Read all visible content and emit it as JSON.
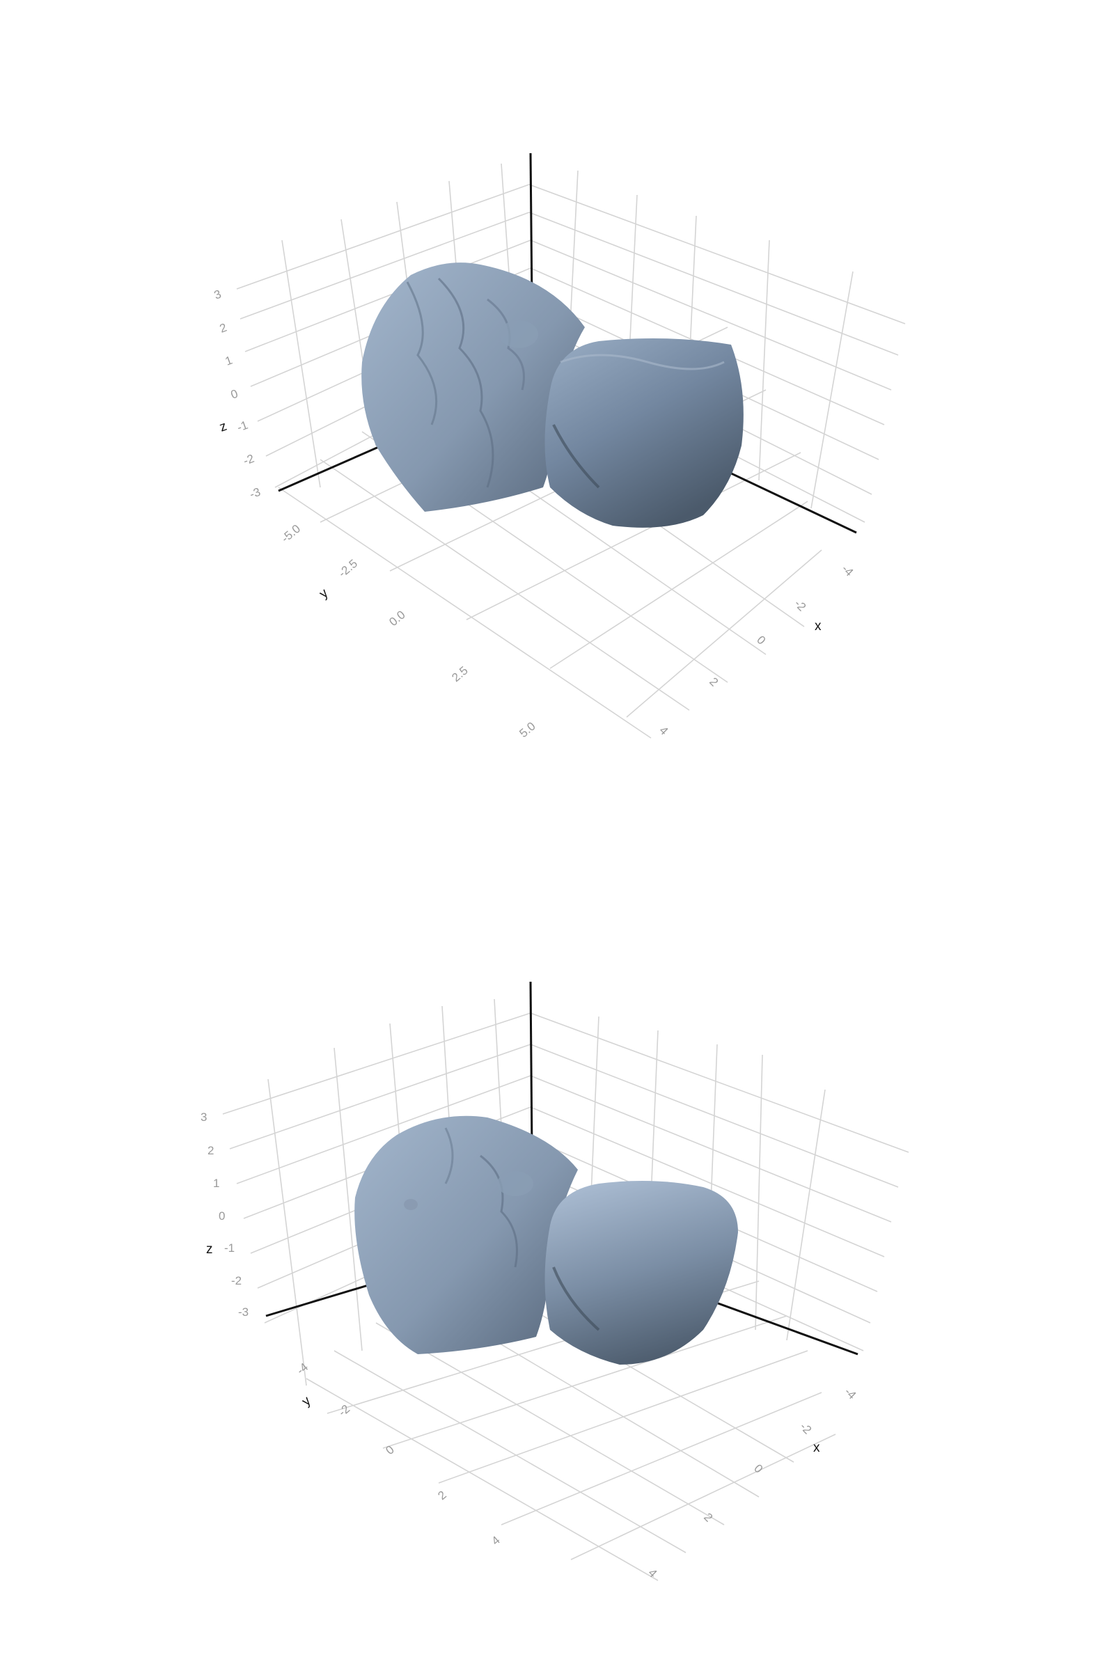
{
  "chart_data": [
    {
      "type": "surface",
      "colors": {
        "surface_light": "#9aaec5",
        "surface_mid": "#7b8ea5",
        "surface_dark": "#4b5a6b",
        "grid": "#d4d4d4",
        "axis": "#111111",
        "tick": "#9a9a9a"
      },
      "axes": {
        "x": {
          "label": "x",
          "ticks": [
            "-4",
            "-2",
            "0",
            "2",
            "4"
          ]
        },
        "y": {
          "label": "y",
          "ticks": [
            "-5.0",
            "-2.5",
            "0.0",
            "2.5",
            "5.0"
          ]
        },
        "z": {
          "label": "z",
          "ticks": [
            "3",
            "2",
            "1",
            "0",
            "-1",
            "-2",
            "-3"
          ]
        }
      }
    },
    {
      "type": "surface",
      "colors": {
        "surface_light": "#9aaec5",
        "surface_mid": "#7b8ea5",
        "surface_dark": "#4b5a6b",
        "grid": "#d4d4d4",
        "axis": "#111111",
        "tick": "#9a9a9a"
      },
      "axes": {
        "x": {
          "label": "x",
          "ticks": [
            "-4",
            "-2",
            "0",
            "2",
            "4"
          ]
        },
        "y": {
          "label": "y",
          "ticks": [
            "-4",
            "-2",
            "0",
            "2",
            "4"
          ]
        },
        "z": {
          "label": "z",
          "ticks": [
            "3",
            "2",
            "1",
            "0",
            "-1",
            "-2",
            "-3"
          ]
        }
      }
    }
  ]
}
